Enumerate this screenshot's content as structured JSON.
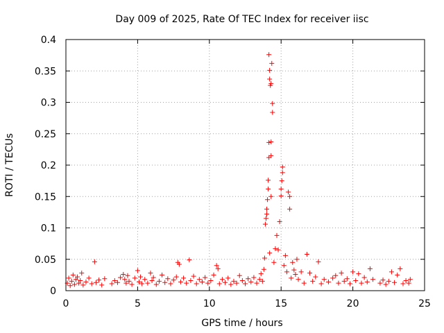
{
  "chart_data": {
    "type": "scatter",
    "title": "Day 009 of 2025, Rate Of TEC Index for receiver iisc",
    "xlabel": "GPS time / hours",
    "ylabel": "ROTI / TECUs",
    "xlim": [
      0,
      25
    ],
    "ylim": [
      0,
      0.4
    ],
    "xticks": [
      0,
      5,
      10,
      15,
      20,
      25
    ],
    "xtick_labels": [
      "0",
      "5",
      "10",
      "15",
      "20",
      "25"
    ],
    "yticks": [
      0,
      0.05,
      0.1,
      0.15,
      0.2,
      0.25,
      0.3,
      0.35,
      0.4
    ],
    "ytick_labels": [
      "0",
      "0.05",
      "0.1",
      "0.15",
      "0.2",
      "0.25",
      "0.3",
      "0.35",
      "0.4"
    ],
    "grid": true,
    "marker": "+",
    "color": "#ff0000",
    "series": [
      {
        "name": "ROTI",
        "points": [
          [
            0.1,
            0.012
          ],
          [
            0.2,
            0.02
          ],
          [
            0.3,
            0.008
          ],
          [
            0.4,
            0.015
          ],
          [
            0.5,
            0.025
          ],
          [
            0.6,
            0.01
          ],
          [
            0.7,
            0.018
          ],
          [
            0.8,
            0.022
          ],
          [
            0.9,
            0.012
          ],
          [
            1.0,
            0.016
          ],
          [
            1.1,
            0.028
          ],
          [
            1.2,
            0.009
          ],
          [
            1.4,
            0.014
          ],
          [
            1.6,
            0.02
          ],
          [
            1.8,
            0.011
          ],
          [
            2.0,
            0.046
          ],
          [
            2.1,
            0.013
          ],
          [
            2.3,
            0.017
          ],
          [
            2.5,
            0.009
          ],
          [
            2.7,
            0.019
          ],
          [
            3.2,
            0.011
          ],
          [
            3.4,
            0.016
          ],
          [
            3.6,
            0.013
          ],
          [
            3.8,
            0.021
          ],
          [
            4.0,
            0.026
          ],
          [
            4.1,
            0.018
          ],
          [
            4.2,
            0.012
          ],
          [
            4.3,
            0.024
          ],
          [
            4.4,
            0.015
          ],
          [
            4.6,
            0.01
          ],
          [
            4.8,
            0.02
          ],
          [
            5.0,
            0.032
          ],
          [
            5.1,
            0.014
          ],
          [
            5.2,
            0.022
          ],
          [
            5.3,
            0.011
          ],
          [
            5.5,
            0.018
          ],
          [
            5.7,
            0.012
          ],
          [
            5.9,
            0.028
          ],
          [
            6.0,
            0.016
          ],
          [
            6.1,
            0.021
          ],
          [
            6.3,
            0.01
          ],
          [
            6.5,
            0.015
          ],
          [
            6.7,
            0.025
          ],
          [
            6.9,
            0.013
          ],
          [
            7.1,
            0.019
          ],
          [
            7.3,
            0.011
          ],
          [
            7.5,
            0.017
          ],
          [
            7.7,
            0.022
          ],
          [
            7.8,
            0.045
          ],
          [
            7.9,
            0.042
          ],
          [
            8.0,
            0.014
          ],
          [
            8.2,
            0.02
          ],
          [
            8.4,
            0.012
          ],
          [
            8.6,
            0.049
          ],
          [
            8.7,
            0.016
          ],
          [
            8.9,
            0.023
          ],
          [
            9.1,
            0.011
          ],
          [
            9.3,
            0.018
          ],
          [
            9.5,
            0.014
          ],
          [
            9.7,
            0.021
          ],
          [
            9.9,
            0.012
          ],
          [
            10.1,
            0.016
          ],
          [
            10.3,
            0.025
          ],
          [
            10.5,
            0.04
          ],
          [
            10.6,
            0.035
          ],
          [
            10.7,
            0.011
          ],
          [
            10.9,
            0.018
          ],
          [
            11.1,
            0.013
          ],
          [
            11.3,
            0.02
          ],
          [
            11.5,
            0.01
          ],
          [
            11.7,
            0.015
          ],
          [
            11.9,
            0.012
          ],
          [
            12.1,
            0.024
          ],
          [
            12.3,
            0.016
          ],
          [
            12.5,
            0.011
          ],
          [
            12.7,
            0.019
          ],
          [
            12.9,
            0.014
          ],
          [
            13.1,
            0.021
          ],
          [
            13.3,
            0.012
          ],
          [
            13.5,
            0.018
          ],
          [
            13.6,
            0.027
          ],
          [
            13.7,
            0.015
          ],
          [
            13.8,
            0.034
          ],
          [
            13.85,
            0.052
          ],
          [
            13.9,
            0.106
          ],
          [
            13.95,
            0.115
          ],
          [
            14.0,
            0.122
          ],
          [
            14.0,
            0.13
          ],
          [
            14.05,
            0.145
          ],
          [
            14.1,
            0.162
          ],
          [
            14.1,
            0.176
          ],
          [
            14.15,
            0.212
          ],
          [
            14.15,
            0.236
          ],
          [
            14.2,
            0.337
          ],
          [
            14.2,
            0.351
          ],
          [
            14.15,
            0.376
          ],
          [
            14.25,
            0.327
          ],
          [
            14.3,
            0.33
          ],
          [
            14.35,
            0.362
          ],
          [
            14.4,
            0.298
          ],
          [
            14.4,
            0.284
          ],
          [
            14.3,
            0.237
          ],
          [
            14.3,
            0.215
          ],
          [
            14.3,
            0.15
          ],
          [
            14.2,
            0.06
          ],
          [
            14.5,
            0.045
          ],
          [
            14.6,
            0.067
          ],
          [
            14.7,
            0.088
          ],
          [
            14.8,
            0.065
          ],
          [
            14.9,
            0.11
          ],
          [
            15.0,
            0.151
          ],
          [
            15.0,
            0.162
          ],
          [
            15.05,
            0.175
          ],
          [
            15.1,
            0.188
          ],
          [
            15.1,
            0.197
          ],
          [
            15.2,
            0.04
          ],
          [
            15.3,
            0.056
          ],
          [
            15.4,
            0.03
          ],
          [
            15.5,
            0.157
          ],
          [
            15.6,
            0.15
          ],
          [
            15.6,
            0.13
          ],
          [
            15.7,
            0.02
          ],
          [
            15.8,
            0.045
          ],
          [
            15.9,
            0.033
          ],
          [
            16.0,
            0.026
          ],
          [
            16.1,
            0.05
          ],
          [
            16.2,
            0.018
          ],
          [
            16.4,
            0.03
          ],
          [
            16.6,
            0.012
          ],
          [
            16.8,
            0.058
          ],
          [
            17.0,
            0.028
          ],
          [
            17.2,
            0.015
          ],
          [
            17.4,
            0.022
          ],
          [
            17.6,
            0.046
          ],
          [
            17.8,
            0.011
          ],
          [
            18.0,
            0.018
          ],
          [
            18.3,
            0.014
          ],
          [
            18.6,
            0.02
          ],
          [
            18.8,
            0.024
          ],
          [
            19.0,
            0.012
          ],
          [
            19.2,
            0.028
          ],
          [
            19.4,
            0.015
          ],
          [
            19.6,
            0.019
          ],
          [
            19.8,
            0.011
          ],
          [
            20.0,
            0.03
          ],
          [
            20.2,
            0.016
          ],
          [
            20.4,
            0.027
          ],
          [
            20.6,
            0.012
          ],
          [
            20.8,
            0.021
          ],
          [
            21.0,
            0.014
          ],
          [
            21.2,
            0.035
          ],
          [
            21.4,
            0.018
          ],
          [
            21.9,
            0.012
          ],
          [
            22.1,
            0.017
          ],
          [
            22.3,
            0.01
          ],
          [
            22.5,
            0.015
          ],
          [
            22.7,
            0.03
          ],
          [
            22.9,
            0.013
          ],
          [
            23.1,
            0.025
          ],
          [
            23.3,
            0.035
          ],
          [
            23.5,
            0.011
          ],
          [
            23.7,
            0.016
          ],
          [
            23.9,
            0.012
          ],
          [
            24.0,
            0.018
          ]
        ]
      }
    ]
  }
}
